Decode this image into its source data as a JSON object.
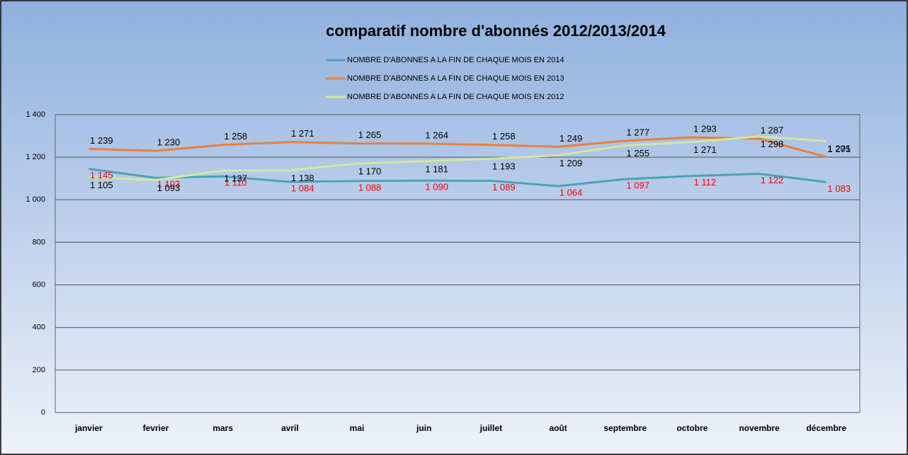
{
  "chart_data": {
    "type": "line",
    "title": "comparatif nombre d'abonnés 2012/2013/2014",
    "categories": [
      "janvier",
      "fevrier",
      "mars",
      "avril",
      "mai",
      "juin",
      "juillet",
      "août",
      "septembre",
      "octobre",
      "novembre",
      "décembre"
    ],
    "series": [
      {
        "name": "NOMBRE D'ABONNES A LA FIN DE CHAQUE MOIS EN 2014",
        "color": "#4aa3b8",
        "label_color": "#ff0000",
        "values": [
          1145,
          1103,
          1110,
          1084,
          1088,
          1090,
          1089,
          1064,
          1097,
          1112,
          1122,
          1083
        ],
        "value_labels": [
          "1 145",
          "1 103",
          "1 110",
          "1 084",
          "1 088",
          "1 090",
          "1 089",
          "1 064",
          "1 097",
          "1 112",
          "1 122",
          "1 083"
        ]
      },
      {
        "name": "NOMBRE D'ABONNES A LA FIN DE CHAQUE MOIS EN 2013",
        "color": "#e8803a",
        "label_color": "#000000",
        "values": [
          1239,
          1230,
          1258,
          1271,
          1265,
          1264,
          1258,
          1249,
          1277,
          1293,
          1287,
          1201
        ],
        "value_labels": [
          "1 239",
          "1 230",
          "1 258",
          "1 271",
          "1 265",
          "1 264",
          "1 258",
          "1 249",
          "1 277",
          "1 293",
          "1 287",
          "1 201"
        ]
      },
      {
        "name": "NOMBRE D'ABONNES A LA FIN DE CHAQUE MOIS EN 2012",
        "color": "#d4e6a0",
        "label_color": "#000000",
        "values": [
          1105,
          1093,
          1137,
          1138,
          1170,
          1181,
          1193,
          1209,
          1255,
          1271,
          1298,
          1275
        ],
        "value_labels": [
          "1 105",
          "1 093",
          "1 137",
          "1 138",
          "1 170",
          "1 181",
          "1 193",
          "1 209",
          "1 255",
          "1 271",
          "1 298",
          "1 275"
        ]
      }
    ],
    "ylim": [
      0,
      1400
    ],
    "yticks": [
      0,
      200,
      400,
      600,
      800,
      {
        "value": 1000,
        "label": "1 000"
      },
      {
        "value": 1200,
        "label": "1 200"
      },
      {
        "value": 1400,
        "label": "1 400"
      }
    ],
    "grid": true
  }
}
